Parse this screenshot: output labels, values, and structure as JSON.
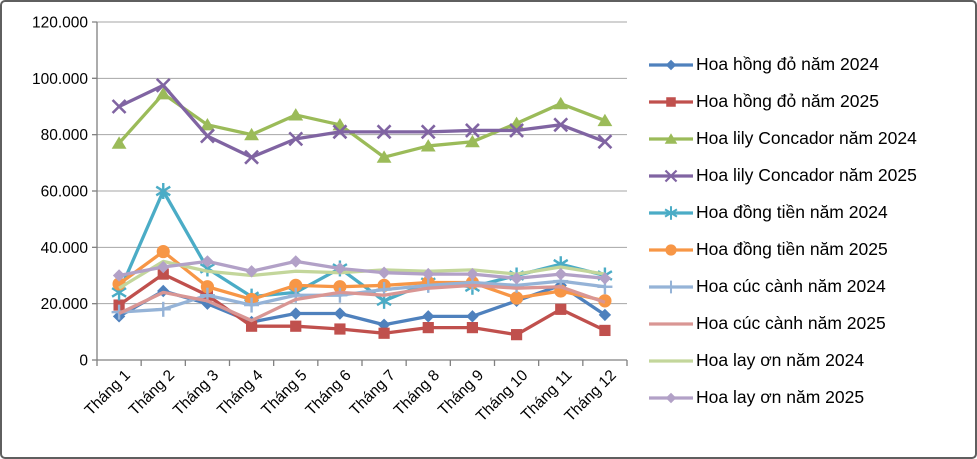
{
  "chart_data": {
    "type": "line",
    "title": "",
    "xlabel": "",
    "ylabel": "",
    "grid": true,
    "legend_position": "right",
    "categories": [
      "Tháng 1",
      "Tháng 2",
      "Tháng 3",
      "Tháng 4",
      "Tháng 5",
      "Tháng 6",
      "Tháng 7",
      "Tháng 8",
      "Tháng 9",
      "Tháng 10",
      "Tháng 11",
      "Tháng 12"
    ],
    "y_axis": {
      "min": 0,
      "max": 120000,
      "tick_interval": 20000,
      "tick_labels": [
        "0",
        "20.000",
        "40.000",
        "60.000",
        "80.000",
        "100.000",
        "120.000"
      ]
    },
    "series": [
      {
        "name": "Hoa hồng đỏ năm 2024",
        "color": "#4F81BD",
        "marker": "diamond",
        "values": [
          15500,
          24500,
          20000,
          13500,
          16500,
          16500,
          12500,
          15500,
          15500,
          21000,
          26500,
          16000
        ]
      },
      {
        "name": "Hoa hồng đỏ năm 2025",
        "color": "#C0504D",
        "marker": "square",
        "values": [
          19500,
          30500,
          23000,
          12000,
          12000,
          11000,
          9500,
          11500,
          11500,
          9000,
          18000,
          10500
        ]
      },
      {
        "name": "Hoa lily Concador năm 2024",
        "color": "#9BBB59",
        "marker": "triangle",
        "values": [
          77000,
          94500,
          83500,
          80000,
          87000,
          83500,
          72000,
          76000,
          77500,
          84000,
          91000,
          85000
        ]
      },
      {
        "name": "Hoa lily Concador năm 2025",
        "color": "#8064A2",
        "marker": "x",
        "values": [
          90000,
          97500,
          79500,
          72000,
          78500,
          81000,
          81000,
          81000,
          81500,
          81500,
          83500,
          77500
        ]
      },
      {
        "name": "Hoa đồng tiền năm 2024",
        "color": "#4BACC6",
        "marker": "asterisk",
        "values": [
          24000,
          60000,
          32500,
          22500,
          24000,
          32500,
          21000,
          27500,
          26000,
          30000,
          34000,
          30000
        ]
      },
      {
        "name": "Hoa đồng tiền năm 2025",
        "color": "#F79646",
        "marker": "circle",
        "values": [
          27000,
          38500,
          26000,
          21500,
          26500,
          26000,
          26500,
          27500,
          27500,
          22000,
          24500,
          21000
        ]
      },
      {
        "name": "Hoa cúc cành năm 2024",
        "color": "#95B3D7",
        "marker": "plus",
        "values": [
          17000,
          18000,
          23000,
          19500,
          23000,
          23000,
          25000,
          26500,
          27500,
          26500,
          28000,
          26000
        ]
      },
      {
        "name": "Hoa cúc cành năm 2025",
        "color": "#D99694",
        "marker": "none",
        "values": [
          16500,
          24000,
          21000,
          14000,
          21500,
          24000,
          23000,
          25500,
          26500,
          25500,
          26000,
          20500
        ]
      },
      {
        "name": "Hoa lay ơn năm 2024",
        "color": "#C3D69B",
        "marker": "none",
        "values": [
          25500,
          35000,
          31500,
          30000,
          31500,
          31000,
          32000,
          31500,
          32000,
          30500,
          33000,
          30500
        ]
      },
      {
        "name": "Hoa lay ơn năm 2025",
        "color": "#B2A1C7",
        "marker": "diamond",
        "values": [
          30000,
          33000,
          35000,
          31500,
          35000,
          32500,
          31000,
          30500,
          30500,
          29000,
          30500,
          29000
        ]
      }
    ]
  },
  "colors": {
    "background": "#FFFFFF",
    "frame_border": "#5F5F5F",
    "gridline": "#A6A6A6",
    "axis": "#808080",
    "text": "#000000"
  }
}
